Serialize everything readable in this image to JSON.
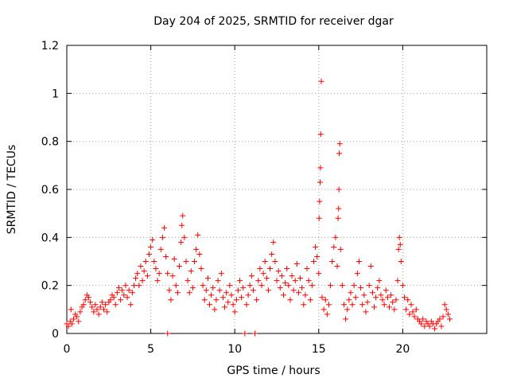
{
  "chart_data": {
    "type": "scatter",
    "title": "Day 204 of 2025, SRMTID for receiver dgar",
    "xlabel": "GPS time / hours",
    "ylabel": "SRMTID / TECUs",
    "xlim": [
      0,
      25
    ],
    "ylim": [
      0,
      1.2
    ],
    "x_ticks": [
      0,
      5,
      10,
      15,
      20
    ],
    "y_ticks": [
      0,
      0.2,
      0.4,
      0.6,
      0.8,
      1,
      1.2
    ],
    "x_tick_labels": [
      "0",
      "5",
      "10",
      "15",
      "20"
    ],
    "y_tick_labels": [
      "0",
      "0.2",
      "0.4",
      "0.6",
      "0.8",
      "1",
      "1.2"
    ],
    "grid": true,
    "marker": "+",
    "color": "#ff0000",
    "series": [
      {
        "name": "SRMTID",
        "points": [
          [
            0.0,
            0.04
          ],
          [
            0.1,
            0.03
          ],
          [
            0.2,
            0.05
          ],
          [
            0.25,
            0.1
          ],
          [
            0.3,
            0.04
          ],
          [
            0.4,
            0.06
          ],
          [
            0.5,
            0.08
          ],
          [
            0.6,
            0.07
          ],
          [
            0.7,
            0.05
          ],
          [
            0.8,
            0.09
          ],
          [
            0.9,
            0.11
          ],
          [
            1.0,
            0.12
          ],
          [
            1.1,
            0.14
          ],
          [
            1.2,
            0.16
          ],
          [
            1.3,
            0.15
          ],
          [
            1.4,
            0.13
          ],
          [
            1.5,
            0.11
          ],
          [
            1.6,
            0.09
          ],
          [
            1.7,
            0.12
          ],
          [
            1.8,
            0.1
          ],
          [
            1.9,
            0.08
          ],
          [
            2.0,
            0.11
          ],
          [
            2.1,
            0.13
          ],
          [
            2.2,
            0.1
          ],
          [
            2.3,
            0.12
          ],
          [
            2.4,
            0.09
          ],
          [
            2.5,
            0.13
          ],
          [
            2.6,
            0.14
          ],
          [
            2.7,
            0.16
          ],
          [
            2.8,
            0.15
          ],
          [
            2.9,
            0.12
          ],
          [
            3.0,
            0.17
          ],
          [
            3.1,
            0.19
          ],
          [
            3.2,
            0.14
          ],
          [
            3.3,
            0.18
          ],
          [
            3.4,
            0.16
          ],
          [
            3.5,
            0.2
          ],
          [
            3.6,
            0.15
          ],
          [
            3.7,
            0.18
          ],
          [
            3.8,
            0.12
          ],
          [
            3.9,
            0.17
          ],
          [
            4.0,
            0.2
          ],
          [
            4.1,
            0.23
          ],
          [
            4.2,
            0.25
          ],
          [
            4.3,
            0.2
          ],
          [
            4.4,
            0.28
          ],
          [
            4.5,
            0.22
          ],
          [
            4.6,
            0.26
          ],
          [
            4.7,
            0.3
          ],
          [
            4.8,
            0.24
          ],
          [
            4.9,
            0.33
          ],
          [
            5.0,
            0.36
          ],
          [
            5.1,
            0.39
          ],
          [
            5.2,
            0.3
          ],
          [
            5.3,
            0.27
          ],
          [
            5.4,
            0.22
          ],
          [
            5.5,
            0.25
          ],
          [
            5.6,
            0.35
          ],
          [
            5.7,
            0.4
          ],
          [
            5.8,
            0.44
          ],
          [
            5.9,
            0.32
          ],
          [
            6.0,
            0.25
          ],
          [
            6.1,
            0.18
          ],
          [
            6.2,
            0.14
          ],
          [
            6.0,
            0.0
          ],
          [
            6.3,
            0.24
          ],
          [
            6.4,
            0.31
          ],
          [
            6.5,
            0.2
          ],
          [
            6.6,
            0.17
          ],
          [
            6.7,
            0.28
          ],
          [
            6.8,
            0.38
          ],
          [
            6.85,
            0.45
          ],
          [
            6.9,
            0.49
          ],
          [
            7.0,
            0.4
          ],
          [
            7.1,
            0.3
          ],
          [
            7.2,
            0.22
          ],
          [
            7.3,
            0.17
          ],
          [
            7.4,
            0.26
          ],
          [
            7.5,
            0.19
          ],
          [
            7.6,
            0.3
          ],
          [
            7.7,
            0.35
          ],
          [
            7.8,
            0.41
          ],
          [
            7.9,
            0.33
          ],
          [
            8.0,
            0.27
          ],
          [
            8.1,
            0.2
          ],
          [
            8.2,
            0.14
          ],
          [
            8.3,
            0.18
          ],
          [
            8.4,
            0.23
          ],
          [
            8.5,
            0.12
          ],
          [
            8.6,
            0.16
          ],
          [
            8.7,
            0.19
          ],
          [
            8.8,
            0.1
          ],
          [
            8.9,
            0.14
          ],
          [
            9.0,
            0.22
          ],
          [
            9.1,
            0.18
          ],
          [
            9.2,
            0.25
          ],
          [
            9.3,
            0.15
          ],
          [
            9.4,
            0.11
          ],
          [
            9.5,
            0.17
          ],
          [
            9.6,
            0.13
          ],
          [
            9.7,
            0.2
          ],
          [
            9.8,
            0.16
          ],
          [
            9.9,
            0.12
          ],
          [
            10.0,
            0.09
          ],
          [
            10.1,
            0.14
          ],
          [
            10.2,
            0.18
          ],
          [
            10.3,
            0.22
          ],
          [
            10.4,
            0.15
          ],
          [
            10.5,
            0.19
          ],
          [
            10.6,
            0.0
          ],
          [
            10.7,
            0.12
          ],
          [
            10.8,
            0.16
          ],
          [
            10.9,
            0.2
          ],
          [
            11.0,
            0.24
          ],
          [
            11.1,
            0.18
          ],
          [
            11.2,
            0.0
          ],
          [
            11.3,
            0.14
          ],
          [
            11.4,
            0.22
          ],
          [
            11.5,
            0.27
          ],
          [
            11.6,
            0.2
          ],
          [
            11.7,
            0.25
          ],
          [
            11.8,
            0.3
          ],
          [
            11.9,
            0.23
          ],
          [
            12.0,
            0.18
          ],
          [
            12.1,
            0.27
          ],
          [
            12.2,
            0.33
          ],
          [
            12.3,
            0.38
          ],
          [
            12.4,
            0.3
          ],
          [
            12.5,
            0.22
          ],
          [
            12.6,
            0.26
          ],
          [
            12.7,
            0.19
          ],
          [
            12.8,
            0.24
          ],
          [
            12.9,
            0.16
          ],
          [
            13.0,
            0.21
          ],
          [
            13.1,
            0.27
          ],
          [
            13.2,
            0.2
          ],
          [
            13.3,
            0.14
          ],
          [
            13.4,
            0.24
          ],
          [
            13.5,
            0.18
          ],
          [
            13.6,
            0.22
          ],
          [
            13.7,
            0.29
          ],
          [
            13.8,
            0.17
          ],
          [
            13.9,
            0.23
          ],
          [
            14.0,
            0.19
          ],
          [
            14.1,
            0.12
          ],
          [
            14.2,
            0.16
          ],
          [
            14.3,
            0.27
          ],
          [
            14.4,
            0.22
          ],
          [
            14.5,
            0.14
          ],
          [
            14.6,
            0.2
          ],
          [
            14.7,
            0.3
          ],
          [
            14.8,
            0.36
          ],
          [
            14.9,
            0.32
          ],
          [
            15.0,
            0.25
          ],
          [
            15.02,
            0.48
          ],
          [
            15.05,
            0.55
          ],
          [
            15.08,
            0.63
          ],
          [
            15.1,
            0.69
          ],
          [
            15.12,
            0.83
          ],
          [
            15.15,
            1.05
          ],
          [
            15.2,
            0.15
          ],
          [
            15.3,
            0.1
          ],
          [
            15.4,
            0.14
          ],
          [
            15.5,
            0.08
          ],
          [
            15.6,
            0.12
          ],
          [
            15.7,
            0.2
          ],
          [
            15.8,
            0.3
          ],
          [
            15.9,
            0.36
          ],
          [
            16.0,
            0.4
          ],
          [
            16.1,
            0.28
          ],
          [
            16.15,
            0.48
          ],
          [
            16.18,
            0.52
          ],
          [
            16.2,
            0.6
          ],
          [
            16.22,
            0.75
          ],
          [
            16.25,
            0.79
          ],
          [
            16.3,
            0.35
          ],
          [
            16.4,
            0.2
          ],
          [
            16.5,
            0.12
          ],
          [
            16.6,
            0.06
          ],
          [
            16.7,
            0.1
          ],
          [
            16.8,
            0.14
          ],
          [
            16.9,
            0.17
          ],
          [
            17.0,
            0.12
          ],
          [
            17.1,
            0.2
          ],
          [
            17.2,
            0.15
          ],
          [
            17.3,
            0.25
          ],
          [
            17.4,
            0.3
          ],
          [
            17.5,
            0.19
          ],
          [
            17.6,
            0.12
          ],
          [
            17.7,
            0.16
          ],
          [
            17.8,
            0.09
          ],
          [
            17.9,
            0.13
          ],
          [
            18.0,
            0.2
          ],
          [
            18.1,
            0.28
          ],
          [
            18.2,
            0.17
          ],
          [
            18.3,
            0.11
          ],
          [
            18.4,
            0.15
          ],
          [
            18.5,
            0.19
          ],
          [
            18.6,
            0.22
          ],
          [
            18.7,
            0.16
          ],
          [
            18.8,
            0.14
          ],
          [
            18.9,
            0.12
          ],
          [
            19.0,
            0.18
          ],
          [
            19.1,
            0.15
          ],
          [
            19.2,
            0.11
          ],
          [
            19.3,
            0.16
          ],
          [
            19.4,
            0.13
          ],
          [
            19.5,
            0.1
          ],
          [
            19.6,
            0.14
          ],
          [
            19.7,
            0.22
          ],
          [
            19.75,
            0.35
          ],
          [
            19.8,
            0.4
          ],
          [
            19.85,
            0.37
          ],
          [
            19.9,
            0.3
          ],
          [
            20.0,
            0.2
          ],
          [
            20.1,
            0.15
          ],
          [
            20.2,
            0.1
          ],
          [
            20.3,
            0.14
          ],
          [
            20.4,
            0.08
          ],
          [
            20.5,
            0.12
          ],
          [
            20.6,
            0.09
          ],
          [
            20.7,
            0.07
          ],
          [
            20.8,
            0.1
          ],
          [
            20.9,
            0.06
          ],
          [
            21.0,
            0.05
          ],
          [
            21.1,
            0.04
          ],
          [
            21.2,
            0.06
          ],
          [
            21.3,
            0.03
          ],
          [
            21.4,
            0.05
          ],
          [
            21.5,
            0.04
          ],
          [
            21.6,
            0.03
          ],
          [
            21.7,
            0.05
          ],
          [
            21.8,
            0.04
          ],
          [
            21.9,
            0.02
          ],
          [
            22.0,
            0.04
          ],
          [
            22.1,
            0.05
          ],
          [
            22.2,
            0.06
          ],
          [
            22.3,
            0.03
          ],
          [
            22.4,
            0.07
          ],
          [
            22.5,
            0.12
          ],
          [
            22.6,
            0.1
          ],
          [
            22.7,
            0.08
          ],
          [
            22.8,
            0.06
          ]
        ]
      }
    ]
  }
}
